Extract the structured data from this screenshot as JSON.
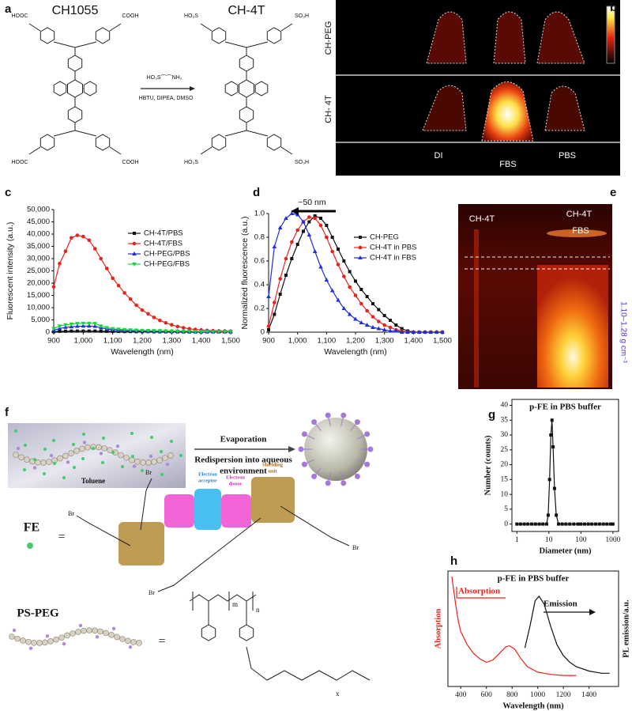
{
  "panel_a": {
    "label": "a",
    "left_compound": "CH1055",
    "right_compound": "CH-4T",
    "reactant": "HO₃S⌒⌒NH₂",
    "reagents": "HBTU, DIPEA, DMSO",
    "left_groups": [
      "HOOC",
      "COOH",
      "HOOC",
      "COOH"
    ],
    "right_groups": [
      "HO₃S",
      "SO₃H",
      "HO₃S",
      "SO₃H"
    ]
  },
  "panel_b": {
    "label": "b",
    "row_labels": [
      "CH-PEG",
      "CH- 4T"
    ],
    "column_labels": [
      "DI",
      "FBS",
      "PBS"
    ]
  },
  "panel_e": {
    "label": "e",
    "lane_labels": [
      "CH-4T",
      "CH-4T"
    ],
    "lane_sublabel": "FBS",
    "density": "1.10–1.28 g cm⁻³"
  },
  "panel_f": {
    "label": "f",
    "solvent": "Toluene",
    "step_1": "Evaporation",
    "step_2": [
      "Redispersion into aqueous",
      "environment"
    ],
    "fe_label": "FE",
    "equals": "=",
    "acceptor": [
      "Electron",
      "acceptor"
    ],
    "donor": [
      "Electron",
      "donor"
    ],
    "shield": [
      "Shielding",
      "unit"
    ],
    "bromine": [
      "Br",
      "Br",
      "Br",
      "Br"
    ],
    "polymer_label": "PS-PEG",
    "indices": [
      "m",
      "n",
      "x"
    ]
  },
  "chart_data": [
    {
      "type": "line",
      "panel_label": "c",
      "xlabel": "Wavelength (nm)",
      "ylabel": "Fluorescent intensity (a.u.)",
      "xlim": [
        900,
        1500
      ],
      "ylim": [
        0,
        50000
      ],
      "xticks": [
        900,
        {
          "value": 1000,
          "label": "1,000"
        },
        {
          "value": 1100,
          "label": "1,100"
        },
        {
          "value": 1200,
          "label": "1,200"
        },
        {
          "value": 1300,
          "label": "1,300"
        },
        {
          "value": 1400,
          "label": "1,400"
        },
        {
          "value": 1500,
          "label": "1,500"
        }
      ],
      "yticks": [
        0,
        {
          "value": 5000,
          "label": "5,000"
        },
        {
          "value": 10000,
          "label": "10,000"
        },
        {
          "value": 15000,
          "label": "15,000"
        },
        {
          "value": 20000,
          "label": "20,000"
        },
        {
          "value": 25000,
          "label": "25,000"
        },
        {
          "value": 30000,
          "label": "30,000"
        },
        {
          "value": 35000,
          "label": "35,000"
        },
        {
          "value": 40000,
          "label": "40,000"
        },
        {
          "value": 45000,
          "label": "45,000"
        },
        {
          "value": 50000,
          "label": "50,000"
        }
      ],
      "legend": "upper right",
      "x": [
        900,
        920,
        940,
        960,
        980,
        1000,
        1020,
        1040,
        1060,
        1080,
        1100,
        1120,
        1140,
        1160,
        1180,
        1200,
        1220,
        1240,
        1260,
        1280,
        1300,
        1320,
        1340,
        1360,
        1380,
        1400,
        1420,
        1440,
        1460,
        1480,
        1500
      ],
      "series": [
        {
          "name": "CH-4T/PBS",
          "color": "#111111",
          "marker": "square",
          "values": [
            200,
            350,
            400,
            450,
            450,
            450,
            450,
            450,
            400,
            350,
            300,
            300,
            250,
            250,
            200,
            200,
            200,
            150,
            150,
            150,
            150,
            100,
            100,
            100,
            100,
            100,
            100,
            100,
            100,
            100,
            100
          ]
        },
        {
          "name": "CH-4T/FBS",
          "color": "#e8231c",
          "marker": "circle",
          "values": [
            18500,
            28000,
            33000,
            38500,
            39500,
            39000,
            37500,
            34000,
            30000,
            26000,
            22000,
            19000,
            16000,
            13500,
            11000,
            9000,
            7500,
            6000,
            4800,
            3800,
            3000,
            2300,
            1800,
            1400,
            1100,
            900,
            700,
            600,
            500,
            450,
            400
          ]
        },
        {
          "name": "CH-PEG/PBS",
          "color": "#1f2ee0",
          "marker": "triangle",
          "values": [
            800,
            1500,
            2000,
            2200,
            2400,
            2500,
            2500,
            2400,
            1800,
            1300,
            1000,
            850,
            750,
            650,
            580,
            520,
            480,
            450,
            420,
            400,
            380,
            360,
            340,
            320,
            300,
            290,
            280,
            270,
            260,
            250,
            240
          ]
        },
        {
          "name": "CH-PEG/FBS",
          "color": "#19d43c",
          "marker": "triangle-down",
          "values": [
            1500,
            2500,
            3000,
            3300,
            3500,
            3600,
            3600,
            3500,
            2500,
            1800,
            1400,
            1200,
            1000,
            900,
            800,
            700,
            650,
            600,
            550,
            500,
            450,
            400,
            380,
            350,
            330,
            300,
            280,
            260,
            250,
            240,
            230
          ]
        }
      ]
    },
    {
      "type": "line",
      "panel_label": "d",
      "xlabel": "Wavelength (nm)",
      "ylabel": "Normalized fluorescence  (a.u.)",
      "xlim": [
        900,
        1500
      ],
      "ylim": [
        0,
        1
      ],
      "xticks": [
        900,
        {
          "value": 1000,
          "label": "1,000"
        },
        {
          "value": 1100,
          "label": "1,100"
        },
        {
          "value": 1200,
          "label": "1,200"
        },
        {
          "value": 1300,
          "label": "1,300"
        },
        {
          "value": 1400,
          "label": "1,400"
        },
        {
          "value": 1500,
          "label": "1,500"
        }
      ],
      "yticks": [
        0,
        0.2,
        0.4,
        0.6,
        0.8,
        {
          "value": 1,
          "label": "1.0"
        }
      ],
      "legend": "center right",
      "annotations": [
        "~50 nm"
      ],
      "x": [
        900,
        920,
        940,
        960,
        980,
        1000,
        1020,
        1040,
        1060,
        1080,
        1100,
        1120,
        1140,
        1160,
        1180,
        1200,
        1220,
        1240,
        1260,
        1280,
        1300,
        1320,
        1340,
        1360,
        1380,
        1400,
        1420,
        1440,
        1460,
        1480,
        1500
      ],
      "series": [
        {
          "name": "CH-PEG",
          "color": "#111111",
          "marker": "square",
          "values": [
            0.02,
            0.15,
            0.32,
            0.48,
            0.62,
            0.74,
            0.85,
            0.93,
            0.98,
            0.96,
            0.9,
            0.8,
            0.7,
            0.6,
            0.51,
            0.43,
            0.36,
            0.3,
            0.24,
            0.19,
            0.14,
            0.1,
            0.06,
            0.03,
            0.01,
            0,
            0,
            0,
            0,
            0,
            0
          ]
        },
        {
          "name": "CH-4T in PBS",
          "color": "#e8231c",
          "marker": "circle",
          "values": [
            0.05,
            0.25,
            0.45,
            0.62,
            0.76,
            0.86,
            0.93,
            0.97,
            0.96,
            0.9,
            0.8,
            0.68,
            0.57,
            0.47,
            0.38,
            0.31,
            0.24,
            0.18,
            0.13,
            0.09,
            0.06,
            0.04,
            0.02,
            0.01,
            0,
            0,
            0,
            0,
            0,
            0,
            0
          ]
        },
        {
          "name": "CH-4T in FBS",
          "color": "#1f2ee0",
          "marker": "triangle",
          "values": [
            0.3,
            0.72,
            0.88,
            0.96,
            1,
            0.99,
            0.93,
            0.82,
            0.68,
            0.55,
            0.44,
            0.35,
            0.27,
            0.2,
            0.15,
            0.11,
            0.08,
            0.06,
            0.04,
            0.03,
            0.02,
            0.01,
            0.01,
            0,
            0,
            0,
            0,
            0,
            0,
            0,
            0
          ]
        }
      ]
    },
    {
      "type": "line",
      "panel_label": "g",
      "title": "p-FE in PBS buffer",
      "xlabel": "Diameter (nm)",
      "ylabel": "Number (counts)",
      "xlog": true,
      "box": true,
      "xlim": [
        0.7,
        1500
      ],
      "ylim": [
        -2.5,
        42
      ],
      "xticks": [
        1,
        10,
        100,
        1000
      ],
      "yticks": [
        0,
        5,
        10,
        15,
        20,
        25,
        30,
        35,
        40
      ],
      "x": [
        1,
        1.3,
        1.7,
        2.2,
        2.9,
        3.8,
        5,
        6.5,
        8.5,
        9.5,
        10.5,
        11.5,
        12.5,
        13.5,
        15,
        17,
        20,
        26,
        34,
        45,
        60,
        80,
        100,
        130,
        170,
        220,
        290,
        380,
        500,
        650,
        850,
        1000
      ],
      "series": [
        {
          "color": "#111111",
          "marker": "square",
          "values": [
            0,
            0,
            0,
            0,
            0,
            0,
            0,
            0,
            0,
            3,
            15,
            30,
            35,
            26,
            12,
            3,
            0,
            0,
            0,
            0,
            0,
            0,
            0,
            0,
            0,
            0,
            0,
            0,
            0,
            0,
            0,
            0
          ]
        }
      ]
    },
    {
      "type": "line",
      "panel_label": "h",
      "title": "p-FE in PBS buffer",
      "xlabel": "Wavelength (nm)",
      "ylabel": "Absorption",
      "ylabel_color": "#e8231c",
      "y2label": "PL emission/a.u.",
      "box": true,
      "xlim": [
        300,
        1630
      ],
      "ylim": [
        0,
        1.05
      ],
      "xticks": [
        400,
        600,
        800,
        1000,
        1200,
        1400
      ],
      "annotations": [
        "Absorption",
        "Emission"
      ],
      "series": [
        {
          "color": "#e8231c",
          "x": [
            330,
            360,
            380,
            400,
            450,
            500,
            550,
            600,
            650,
            700,
            750,
            780,
            820,
            870,
            920,
            1000,
            1100,
            1200,
            1300
          ],
          "values": [
            1,
            0.75,
            0.6,
            0.5,
            0.38,
            0.3,
            0.25,
            0.22,
            0.24,
            0.3,
            0.36,
            0.37,
            0.34,
            0.25,
            0.18,
            0.13,
            0.11,
            0.1,
            0.1
          ]
        },
        {
          "color": "#111111",
          "x": [
            900,
            940,
            980,
            1010,
            1050,
            1100,
            1150,
            1200,
            1250,
            1300,
            1400,
            1500,
            1560
          ],
          "values": [
            0.35,
            0.55,
            0.78,
            0.82,
            0.75,
            0.55,
            0.38,
            0.28,
            0.22,
            0.18,
            0.14,
            0.12,
            0.12
          ]
        }
      ]
    }
  ]
}
